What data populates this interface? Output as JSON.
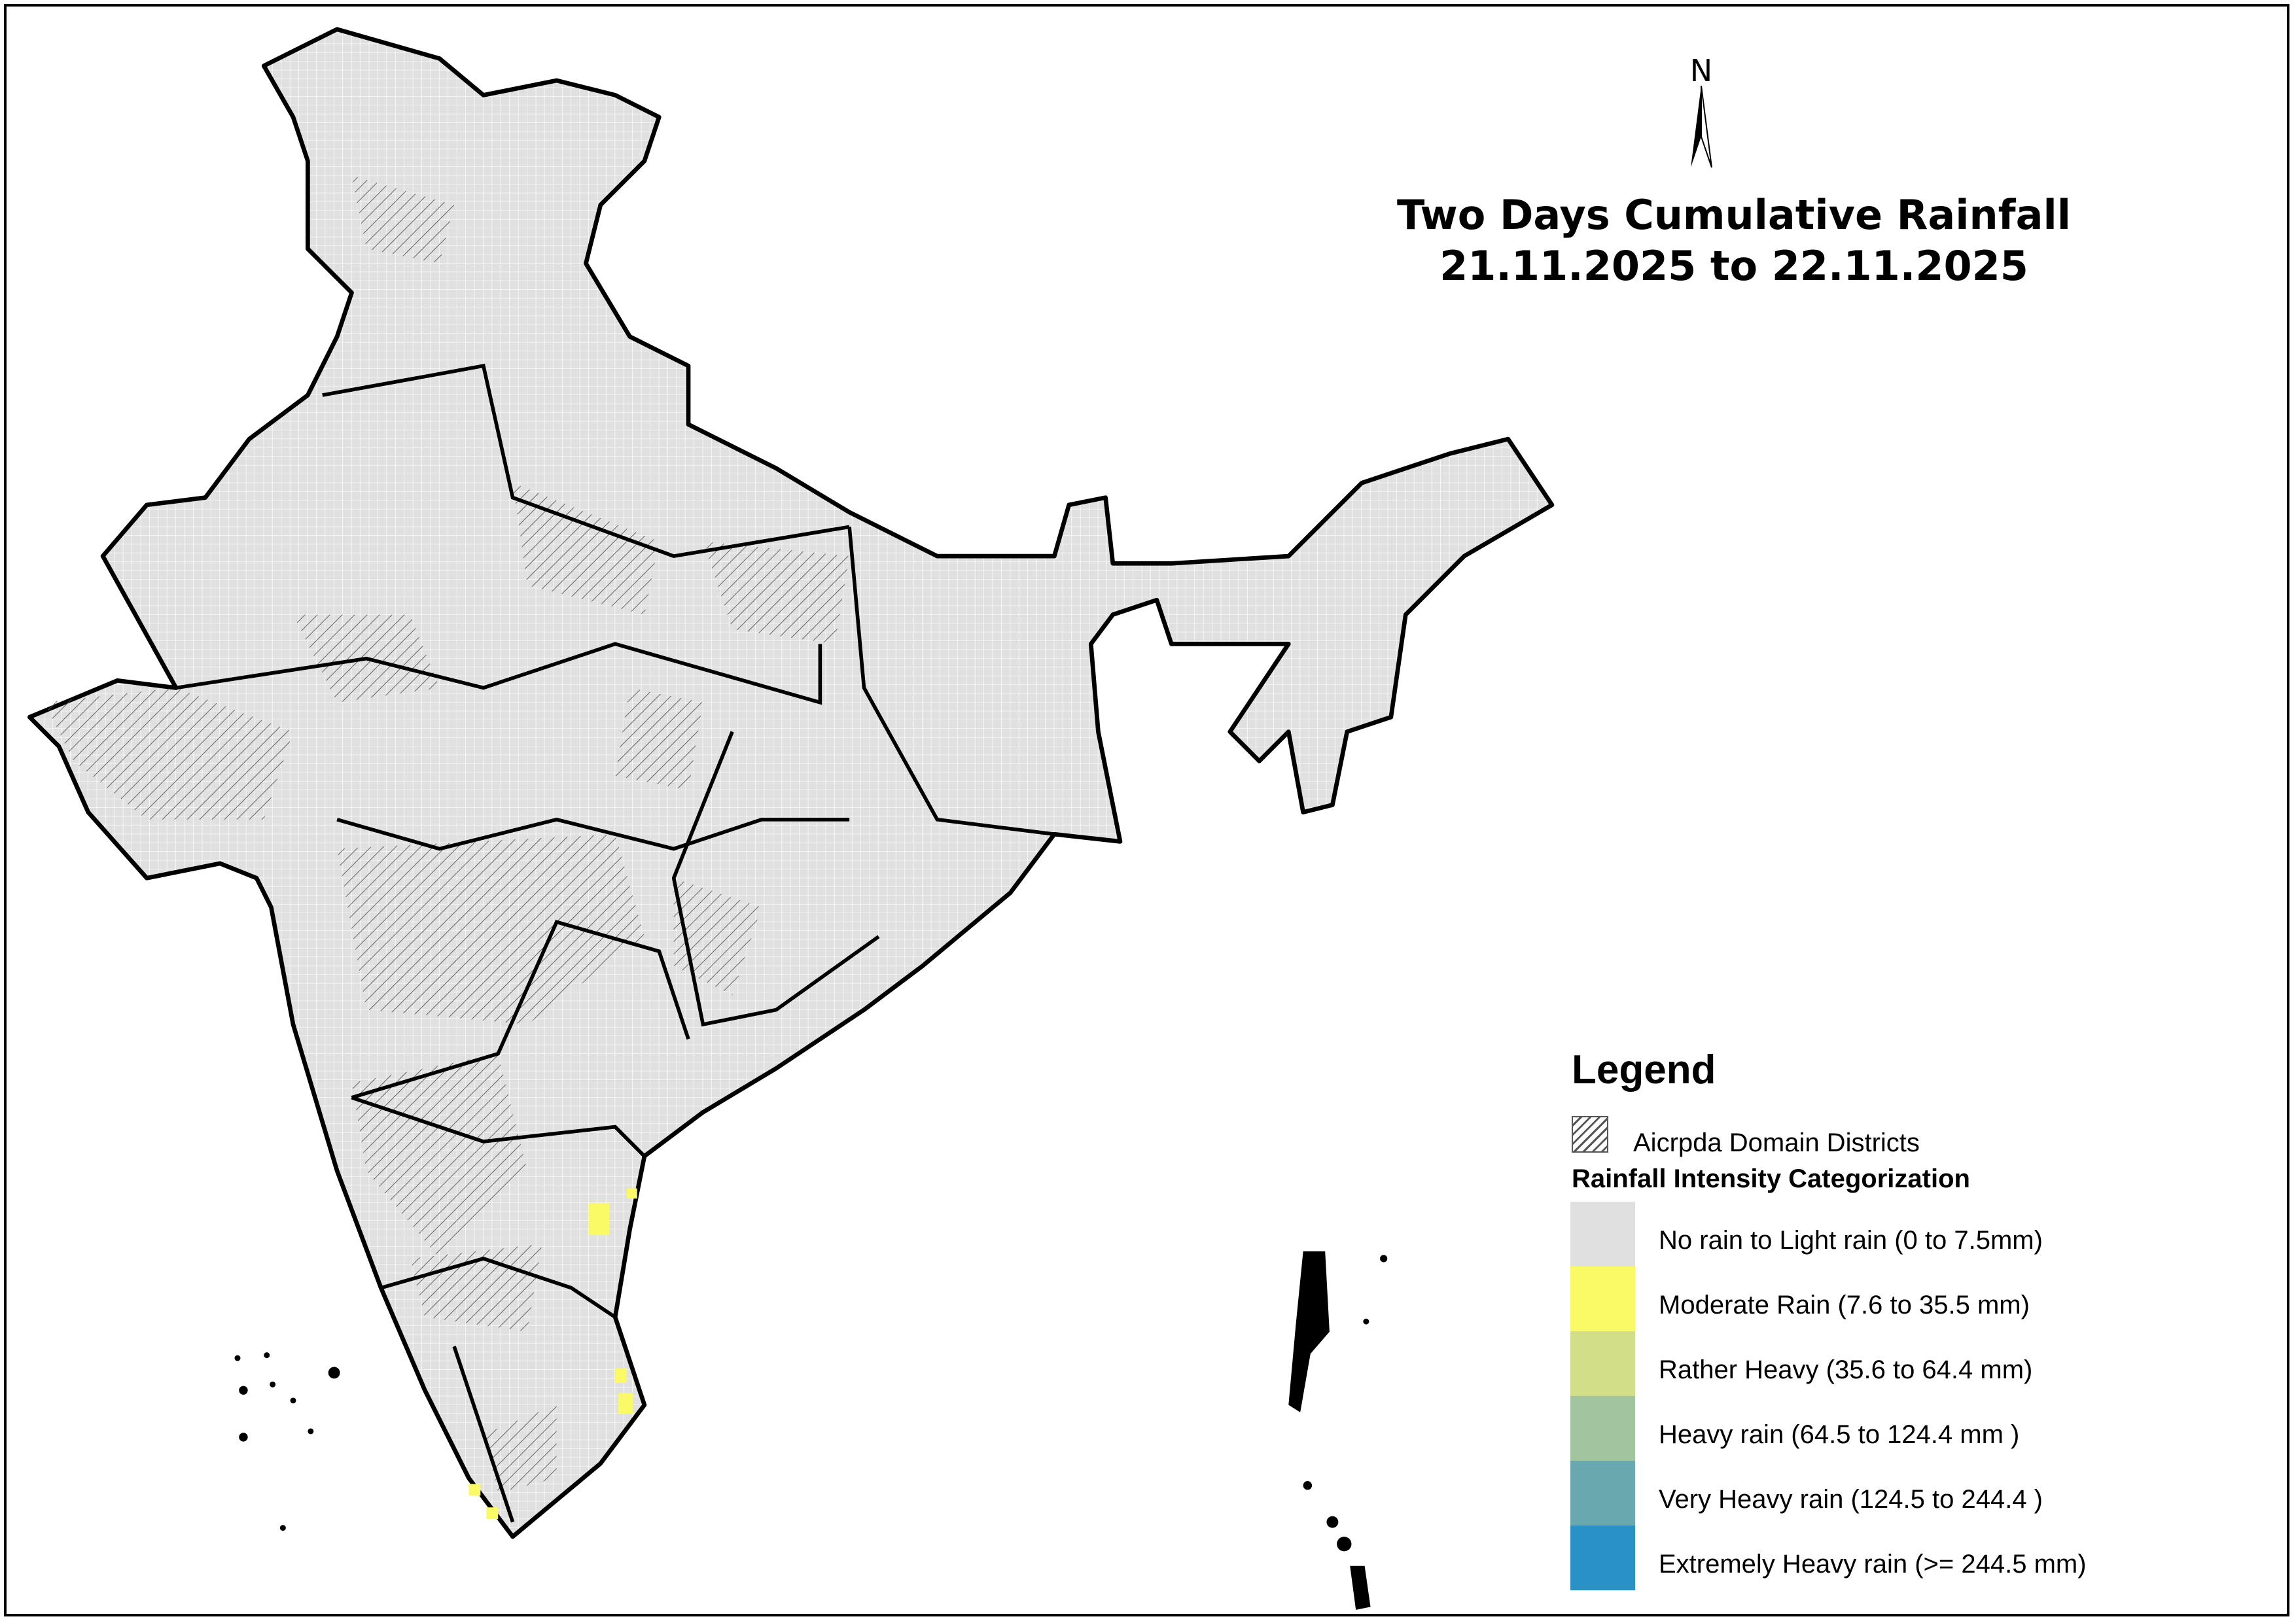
{
  "title": {
    "line1": "Two Days Cumulative Rainfall",
    "line2": "21.11.2025 to 22.11.2025"
  },
  "north_arrow": {
    "label": "N",
    "icon": "north-arrow-icon"
  },
  "legend": {
    "title": "Legend",
    "domain_label": "Aicrpda Domain Districts",
    "category_title": "Rainfall Intensity Categorization",
    "classes": [
      {
        "label": "No rain to Light rain (0 to 7.5mm)",
        "color": "#e0e0e0"
      },
      {
        "label": "Moderate Rain (7.6 to 35.5 mm)",
        "color": "#f9fa66"
      },
      {
        "label": "Rather Heavy (35.6 to 64.4 mm)",
        "color": "#d2de88"
      },
      {
        "label": "Heavy rain (64.5 to 124.4 mm )",
        "color": "#a2c49e"
      },
      {
        "label": "Very Heavy rain (124.5 to 244.4 )",
        "color": "#6aa8b0"
      },
      {
        "label": "Extremely Heavy rain  (>= 244.5 mm)",
        "color": "#2a90c8"
      }
    ]
  },
  "map": {
    "base_color": "#e0e0e0",
    "moderate_color": "#f9fa66"
  }
}
